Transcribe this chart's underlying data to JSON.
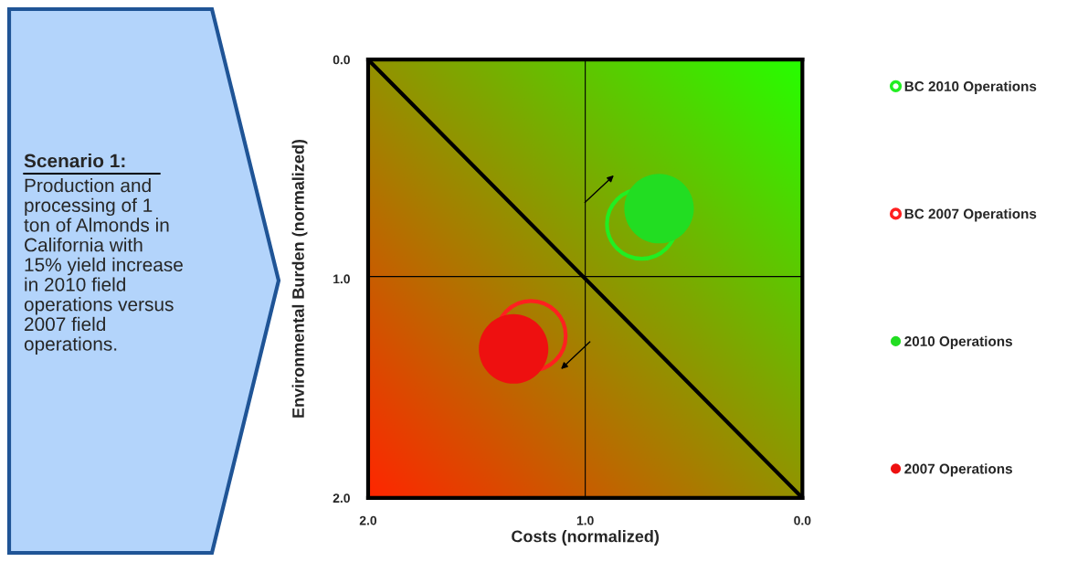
{
  "chart_data": {
    "type": "scatter",
    "xlabel": "Costs (normalized)",
    "ylabel": "Environmental Burden (normalized)",
    "xlim": [
      2.0,
      0.0
    ],
    "ylim": [
      2.0,
      0.0
    ],
    "xticks": [
      {
        "value": 2.0,
        "label": "2.0"
      },
      {
        "value": 1.0,
        "label": "1.0"
      },
      {
        "value": 0.0,
        "label": "0.0"
      }
    ],
    "yticks": [
      {
        "value": 0.0,
        "label": "0.0"
      },
      {
        "value": 1.0,
        "label": "1.0"
      },
      {
        "value": 2.0,
        "label": "2.0"
      }
    ],
    "annotations": [
      "Scenario 1:",
      "Production and\nprocessing of 1\nton of Almonds in\nCalifornia with\n15% yield increase\nin 2010 field\noperations versus\n2007 field\noperations."
    ],
    "ref_lines": [
      {
        "axis": "x",
        "value": 1.0,
        "color": "#000000"
      },
      {
        "axis": "y",
        "value": 0.99,
        "color": "#000000"
      }
    ],
    "series": [
      {
        "name": "BC 2010 Operations",
        "color": "#22ee22",
        "x": [
          0.74
        ],
        "values": [
          0.75
        ],
        "marker": "circle"
      },
      {
        "name": "BC 2007 Operations",
        "color": "#ff2020",
        "x": [
          1.25
        ],
        "values": [
          1.26
        ],
        "marker": "circle"
      },
      {
        "type": "bubble",
        "name": "2010 Operations",
        "color": "#22dd22",
        "x": [
          0.66
        ],
        "values": [
          0.68
        ],
        "sizes": [
          1
        ],
        "marker": "circle"
      },
      {
        "type": "bubble",
        "name": "2007 Operations",
        "color": "#ee1010",
        "x": [
          1.33
        ],
        "values": [
          1.32
        ],
        "sizes": [
          1
        ],
        "marker": "circle"
      },
      {
        "type": "line",
        "color": "#000000",
        "x": [
          2.0,
          0.0
        ],
        "values": [
          0.0,
          2.0
        ]
      }
    ],
    "grid": false,
    "legend": "right"
  }
}
